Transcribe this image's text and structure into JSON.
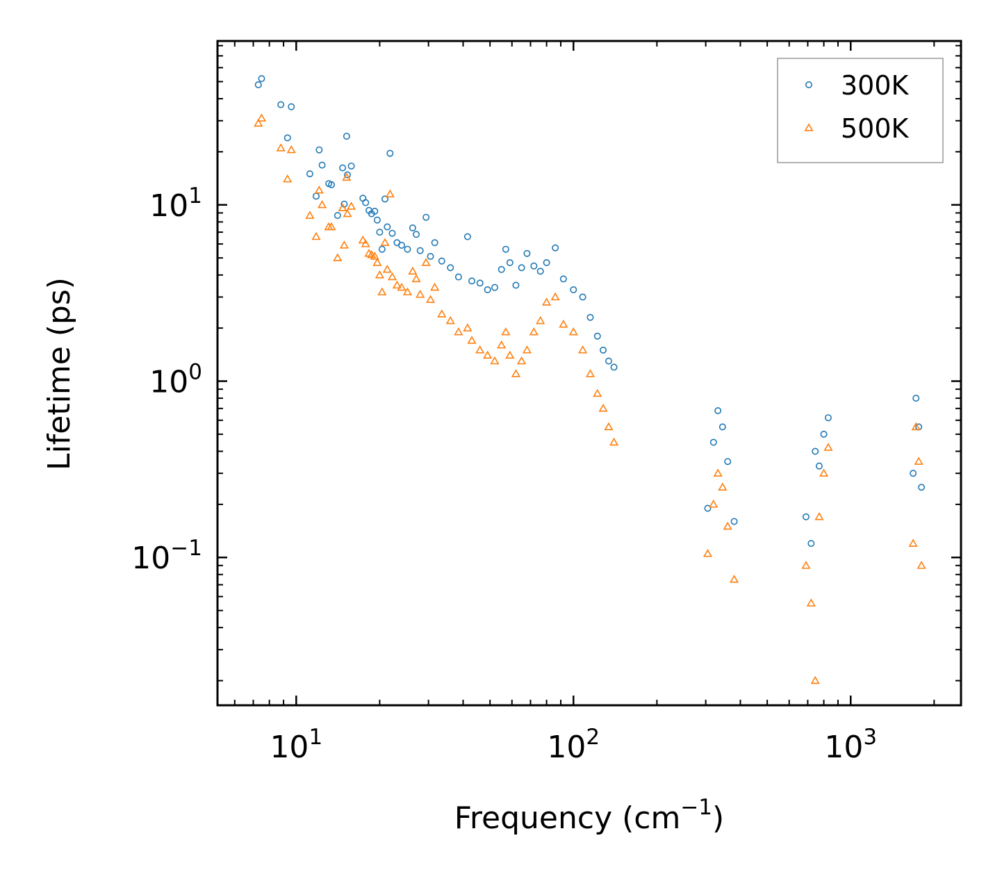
{
  "chart_data": {
    "type": "scatter",
    "title": "",
    "xlabel": "Frequency (cm",
    "xlabel_sup": "−1",
    "xlabel_close": ")",
    "ylabel": "Lifetime (ps)",
    "xscale": "log",
    "yscale": "log",
    "xlim": [
      5.2,
      2500
    ],
    "ylim": [
      0.0145,
      85
    ],
    "xticks": [
      {
        "base": "10",
        "exp": "1",
        "value": 10
      },
      {
        "base": "10",
        "exp": "2",
        "value": 100
      },
      {
        "base": "10",
        "exp": "3",
        "value": 1000
      }
    ],
    "yticks": [
      {
        "base": "10",
        "exp": "−1",
        "value": 0.1
      },
      {
        "base": "10",
        "exp": "0",
        "value": 1
      },
      {
        "base": "10",
        "exp": "1",
        "value": 10
      }
    ],
    "legend_position": "top-right",
    "series": [
      {
        "name": "300K",
        "marker": "circle",
        "color": "#1f77b4",
        "points": [
          [
            7.3,
            48
          ],
          [
            7.5,
            52
          ],
          [
            8.8,
            37
          ],
          [
            9.3,
            24
          ],
          [
            9.6,
            36
          ],
          [
            11.2,
            15
          ],
          [
            11.8,
            11.2
          ],
          [
            12.1,
            20.5
          ],
          [
            12.4,
            16.8
          ],
          [
            13.1,
            13.2
          ],
          [
            13.4,
            13.0
          ],
          [
            14.1,
            8.7
          ],
          [
            14.7,
            16.2
          ],
          [
            14.9,
            10.1
          ],
          [
            15.2,
            24.5
          ],
          [
            15.3,
            14.8
          ],
          [
            15.8,
            16.6
          ],
          [
            17.4,
            10.9
          ],
          [
            17.8,
            10.3
          ],
          [
            18.3,
            9.3
          ],
          [
            18.7,
            8.9
          ],
          [
            19.2,
            9.2
          ],
          [
            19.6,
            8.2
          ],
          [
            20.0,
            7.0
          ],
          [
            20.4,
            5.6
          ],
          [
            20.9,
            10.8
          ],
          [
            21.3,
            7.5
          ],
          [
            21.8,
            19.6
          ],
          [
            22.2,
            6.9
          ],
          [
            23.1,
            6.1
          ],
          [
            24.0,
            5.9
          ],
          [
            25.2,
            5.6
          ],
          [
            26.3,
            7.4
          ],
          [
            27.1,
            6.8
          ],
          [
            28.0,
            5.5
          ],
          [
            29.4,
            8.5
          ],
          [
            30.5,
            5.1
          ],
          [
            31.6,
            6.1
          ],
          [
            33.5,
            4.8
          ],
          [
            36.0,
            4.4
          ],
          [
            38.5,
            3.9
          ],
          [
            41.5,
            6.6
          ],
          [
            43.0,
            3.7
          ],
          [
            46.0,
            3.6
          ],
          [
            49.0,
            3.3
          ],
          [
            52.0,
            3.4
          ],
          [
            55.0,
            4.3
          ],
          [
            57.0,
            5.6
          ],
          [
            59.0,
            4.7
          ],
          [
            62.0,
            3.5
          ],
          [
            65.0,
            4.4
          ],
          [
            68.0,
            5.3
          ],
          [
            72.0,
            4.5
          ],
          [
            76.0,
            4.2
          ],
          [
            80.0,
            4.7
          ],
          [
            86.0,
            5.7
          ],
          [
            92.0,
            3.8
          ],
          [
            100.0,
            3.3
          ],
          [
            108.0,
            3.0
          ],
          [
            115.0,
            2.3
          ],
          [
            122.0,
            1.8
          ],
          [
            128.0,
            1.5
          ],
          [
            134.0,
            1.3
          ],
          [
            140.0,
            1.2
          ],
          [
            305,
            0.19
          ],
          [
            320,
            0.45
          ],
          [
            332,
            0.68
          ],
          [
            345,
            0.55
          ],
          [
            360,
            0.35
          ],
          [
            380,
            0.16
          ],
          [
            690,
            0.17
          ],
          [
            720,
            0.12
          ],
          [
            745,
            0.4
          ],
          [
            770,
            0.33
          ],
          [
            800,
            0.5
          ],
          [
            830,
            0.62
          ],
          [
            1680,
            0.3
          ],
          [
            1720,
            0.8
          ],
          [
            1760,
            0.55
          ],
          [
            1800,
            0.25
          ]
        ]
      },
      {
        "name": "500K",
        "marker": "triangle",
        "color": "#ff7f0e",
        "points": [
          [
            7.3,
            29
          ],
          [
            7.5,
            31
          ],
          [
            8.8,
            21
          ],
          [
            9.3,
            14
          ],
          [
            9.6,
            20.5
          ],
          [
            11.2,
            8.7
          ],
          [
            11.8,
            6.6
          ],
          [
            12.1,
            12.1
          ],
          [
            12.4,
            10.0
          ],
          [
            13.1,
            7.5
          ],
          [
            13.4,
            7.5
          ],
          [
            14.1,
            5.0
          ],
          [
            14.7,
            9.6
          ],
          [
            14.9,
            5.9
          ],
          [
            15.2,
            14.3
          ],
          [
            15.3,
            8.9
          ],
          [
            15.8,
            9.8
          ],
          [
            17.4,
            6.3
          ],
          [
            17.8,
            6.0
          ],
          [
            18.3,
            5.3
          ],
          [
            18.7,
            5.2
          ],
          [
            19.2,
            5.1
          ],
          [
            19.6,
            4.7
          ],
          [
            20.0,
            4.0
          ],
          [
            20.4,
            3.2
          ],
          [
            20.9,
            6.1
          ],
          [
            21.3,
            4.3
          ],
          [
            21.8,
            11.5
          ],
          [
            22.2,
            3.9
          ],
          [
            23.1,
            3.5
          ],
          [
            24.0,
            3.4
          ],
          [
            25.2,
            3.2
          ],
          [
            26.3,
            4.2
          ],
          [
            27.1,
            3.8
          ],
          [
            28.0,
            3.1
          ],
          [
            29.4,
            4.7
          ],
          [
            30.5,
            2.9
          ],
          [
            31.6,
            3.4
          ],
          [
            33.5,
            2.4
          ],
          [
            36.0,
            2.2
          ],
          [
            38.5,
            1.9
          ],
          [
            41.5,
            2.0
          ],
          [
            43.0,
            1.7
          ],
          [
            46.0,
            1.5
          ],
          [
            49.0,
            1.4
          ],
          [
            52.0,
            1.3
          ],
          [
            55.0,
            1.6
          ],
          [
            57.0,
            1.9
          ],
          [
            59.0,
            1.4
          ],
          [
            62.0,
            1.1
          ],
          [
            65.0,
            1.3
          ],
          [
            68.0,
            1.5
          ],
          [
            72.0,
            1.9
          ],
          [
            76.0,
            2.2
          ],
          [
            80.0,
            2.8
          ],
          [
            86.0,
            3.0
          ],
          [
            92.0,
            2.1
          ],
          [
            100.0,
            1.9
          ],
          [
            108.0,
            1.5
          ],
          [
            115.0,
            1.1
          ],
          [
            122.0,
            0.85
          ],
          [
            128.0,
            0.7
          ],
          [
            134.0,
            0.55
          ],
          [
            140.0,
            0.45
          ],
          [
            305,
            0.105
          ],
          [
            320,
            0.2
          ],
          [
            332,
            0.3
          ],
          [
            345,
            0.25
          ],
          [
            360,
            0.15
          ],
          [
            380,
            0.075
          ],
          [
            690,
            0.09
          ],
          [
            720,
            0.055
          ],
          [
            745,
            0.02
          ],
          [
            770,
            0.17
          ],
          [
            800,
            0.3
          ],
          [
            830,
            0.42
          ],
          [
            1680,
            0.12
          ],
          [
            1720,
            0.55
          ],
          [
            1760,
            0.35
          ],
          [
            1800,
            0.09
          ]
        ]
      }
    ]
  }
}
